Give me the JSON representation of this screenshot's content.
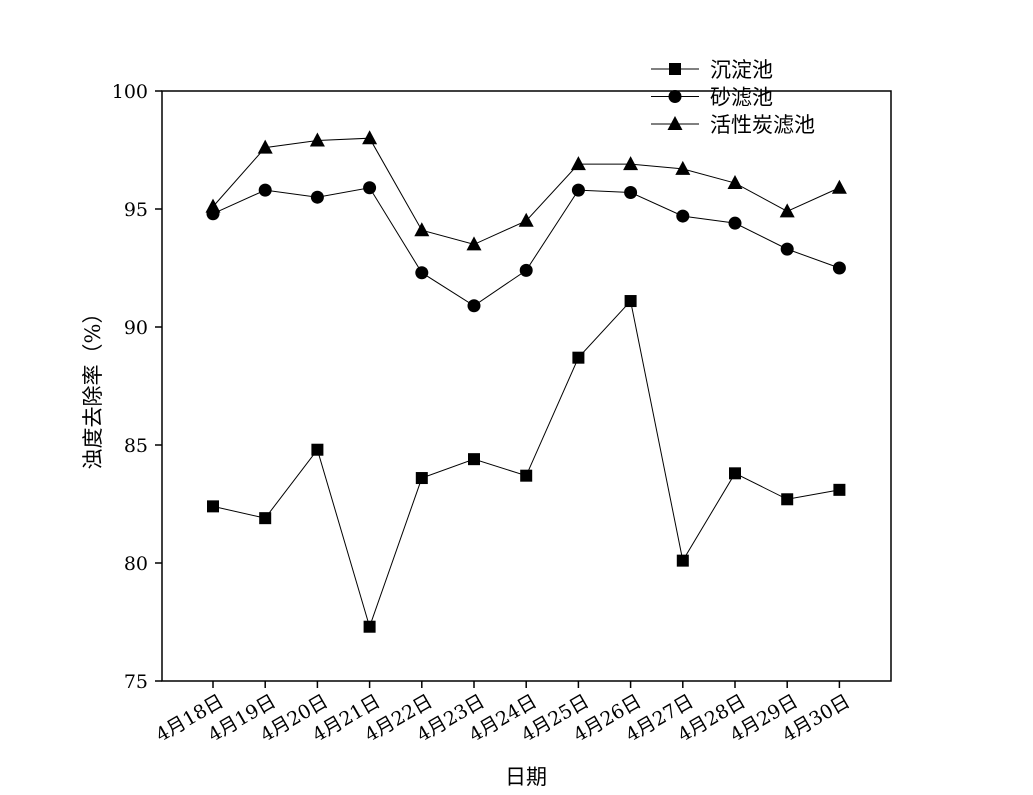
{
  "chart_data": {
    "type": "line",
    "xlabel": "日期",
    "ylabel": "浊度去除率（%）",
    "categories": [
      "4月18日",
      "4月19日",
      "4月20日",
      "4月21日",
      "4月22日",
      "4月23日",
      "4月24日",
      "4月25日",
      "4月26日",
      "4月27日",
      "4月28日",
      "4月29日",
      "4月30日"
    ],
    "ylim": [
      75,
      100
    ],
    "yticks": [
      75,
      80,
      85,
      90,
      95,
      100
    ],
    "grid": false,
    "legend_position": "top-right",
    "series": [
      {
        "name": "沉淀池",
        "marker": "square",
        "values": [
          82.4,
          81.9,
          84.8,
          77.3,
          83.6,
          84.4,
          83.7,
          88.7,
          91.1,
          80.1,
          83.8,
          82.7,
          83.1
        ]
      },
      {
        "name": "砂滤池",
        "marker": "circle",
        "values": [
          94.8,
          95.8,
          95.5,
          95.9,
          92.3,
          90.9,
          92.4,
          95.8,
          95.7,
          94.7,
          94.4,
          93.3,
          92.5
        ]
      },
      {
        "name": "活性炭滤池",
        "marker": "triangle",
        "values": [
          95.1,
          97.6,
          97.9,
          98.0,
          94.1,
          93.5,
          94.5,
          96.9,
          96.9,
          96.7,
          96.1,
          94.9,
          95.9
        ]
      }
    ]
  }
}
